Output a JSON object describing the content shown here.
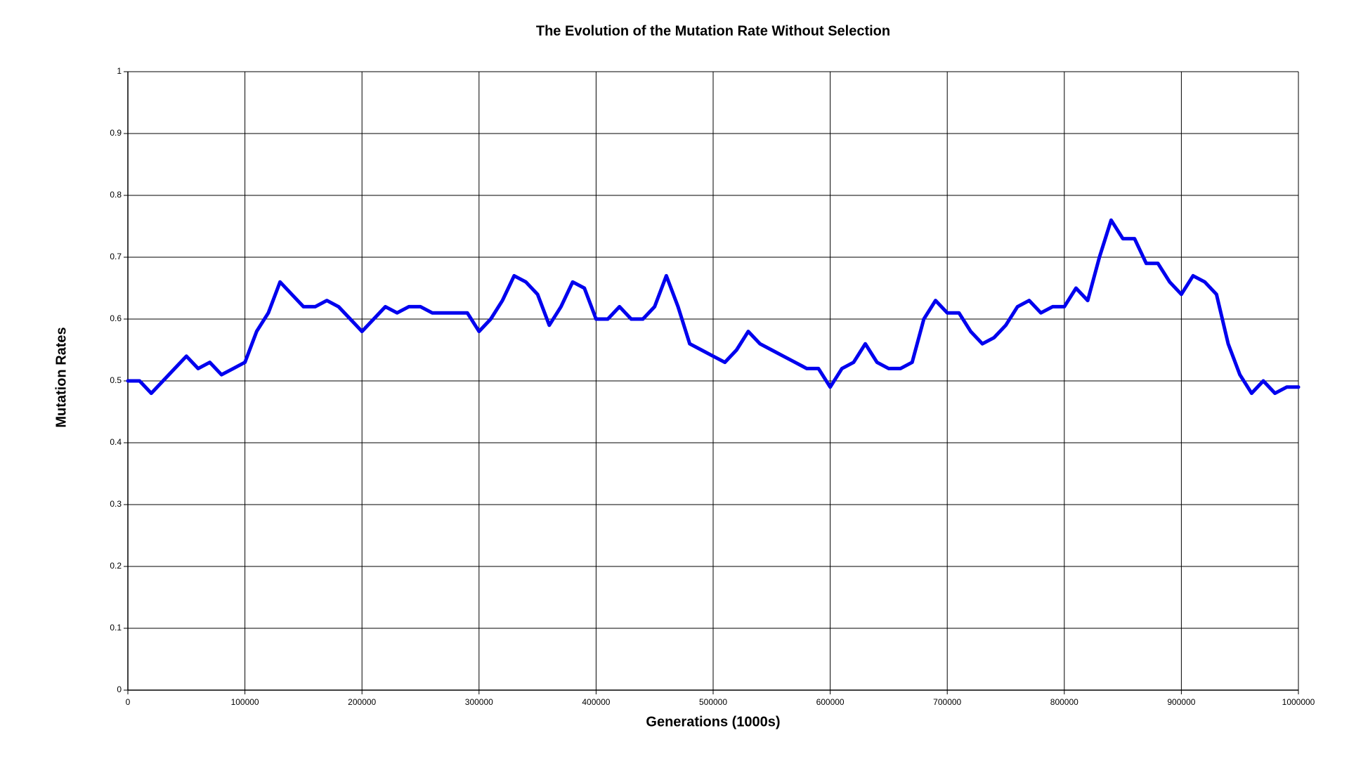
{
  "chart_data": {
    "type": "line",
    "title": "The Evolution of the Mutation Rate Without Selection",
    "x_label": "Generations (1000s)",
    "y_label": "Mutation Rates",
    "x": [
      0,
      10000,
      20000,
      30000,
      40000,
      50000,
      60000,
      70000,
      80000,
      90000,
      100000,
      110000,
      120000,
      130000,
      140000,
      150000,
      160000,
      170000,
      180000,
      190000,
      200000,
      210000,
      220000,
      230000,
      240000,
      250000,
      260000,
      270000,
      280000,
      290000,
      300000,
      310000,
      320000,
      330000,
      340000,
      350000,
      360000,
      370000,
      380000,
      390000,
      400000,
      410000,
      420000,
      430000,
      440000,
      450000,
      460000,
      470000,
      480000,
      490000,
      500000,
      510000,
      520000,
      530000,
      540000,
      550000,
      560000,
      570000,
      580000,
      590000,
      600000,
      610000,
      620000,
      630000,
      640000,
      650000,
      660000,
      670000,
      680000,
      690000,
      700000,
      710000,
      720000,
      730000,
      740000,
      750000,
      760000,
      770000,
      780000,
      790000,
      800000,
      810000,
      820000,
      830000,
      840000,
      850000,
      860000,
      870000,
      880000,
      890000,
      900000,
      910000,
      920000,
      930000,
      940000,
      950000,
      960000,
      970000,
      980000,
      990000,
      1000000
    ],
    "values": [
      0.5,
      0.5,
      0.48,
      0.5,
      0.52,
      0.54,
      0.52,
      0.53,
      0.51,
      0.52,
      0.53,
      0.58,
      0.61,
      0.66,
      0.64,
      0.62,
      0.62,
      0.63,
      0.62,
      0.6,
      0.58,
      0.6,
      0.62,
      0.61,
      0.62,
      0.62,
      0.61,
      0.61,
      0.61,
      0.61,
      0.58,
      0.6,
      0.63,
      0.67,
      0.66,
      0.64,
      0.59,
      0.62,
      0.66,
      0.65,
      0.6,
      0.6,
      0.62,
      0.6,
      0.6,
      0.62,
      0.67,
      0.62,
      0.56,
      0.55,
      0.54,
      0.53,
      0.55,
      0.58,
      0.56,
      0.55,
      0.54,
      0.53,
      0.52,
      0.52,
      0.49,
      0.52,
      0.53,
      0.56,
      0.53,
      0.52,
      0.52,
      0.53,
      0.6,
      0.63,
      0.61,
      0.61,
      0.58,
      0.56,
      0.57,
      0.59,
      0.62,
      0.63,
      0.61,
      0.62,
      0.62,
      0.65,
      0.63,
      0.7,
      0.76,
      0.73,
      0.73,
      0.69,
      0.69,
      0.66,
      0.64,
      0.67,
      0.66,
      0.64,
      0.56,
      0.51,
      0.48,
      0.5,
      0.48,
      0.49,
      0.49
    ],
    "color": "#0000ee",
    "xlim": [
      0,
      1000000
    ],
    "xticks": [
      0,
      100000,
      200000,
      300000,
      400000,
      500000,
      600000,
      700000,
      800000,
      900000,
      1000000
    ],
    "ylim": [
      0,
      1
    ],
    "yticks": [
      0,
      0.1,
      0.2,
      0.3,
      0.4,
      0.5,
      0.6,
      0.7,
      0.8,
      0.9,
      1
    ],
    "grid": true
  }
}
